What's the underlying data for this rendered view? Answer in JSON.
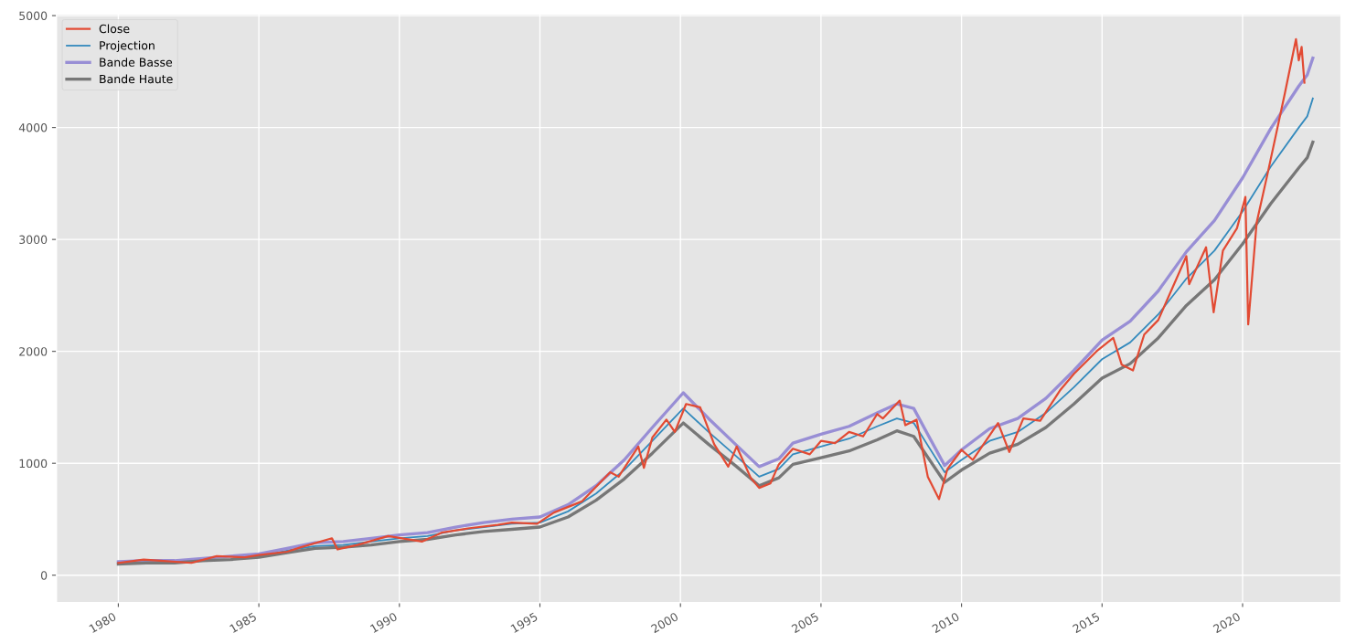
{
  "chart_data": {
    "type": "line",
    "series": [
      {
        "name": "Close",
        "color": "#e24a33",
        "x": [
          1980,
          1980.9,
          1981.5,
          1982.6,
          1983.5,
          1984.5,
          1985,
          1986,
          1986.5,
          1987.6,
          1987.8,
          1988.5,
          1989.6,
          1990.8,
          1991.5,
          1992.5,
          1993.5,
          1994,
          1994.9,
          1995.5,
          1996.5,
          1997.5,
          1997.8,
          1998.5,
          1998.7,
          1999,
          1999.5,
          1999.8,
          2000.2,
          2000.7,
          2001.2,
          2001.7,
          2002,
          2002.5,
          2002.8,
          2003.2,
          2003.5,
          2004,
          2004.6,
          2005,
          2005.5,
          2006,
          2006.5,
          2007,
          2007.2,
          2007.8,
          2008,
          2008.4,
          2008.8,
          2009.2,
          2009.5,
          2010,
          2010.4,
          2011.3,
          2011.7,
          2012.2,
          2012.8,
          2013.5,
          2014,
          2014.8,
          2015.4,
          2015.7,
          2016.1,
          2016.5,
          2017,
          2018,
          2018.1,
          2018.7,
          2018.97,
          2019.3,
          2019.8,
          2020.1,
          2020.2,
          2020.5,
          2020.9,
          2021.5,
          2021.9,
          2022.0,
          2022.1,
          2022.2
        ],
        "values": [
          110,
          140,
          130,
          110,
          170,
          160,
          180,
          210,
          250,
          330,
          230,
          270,
          350,
          300,
          380,
          420,
          450,
          470,
          460,
          560,
          660,
          920,
          880,
          1150,
          960,
          1230,
          1390,
          1280,
          1530,
          1500,
          1170,
          970,
          1150,
          870,
          780,
          820,
          990,
          1130,
          1080,
          1200,
          1180,
          1280,
          1240,
          1440,
          1400,
          1560,
          1340,
          1390,
          880,
          680,
          950,
          1120,
          1030,
          1360,
          1100,
          1400,
          1380,
          1650,
          1800,
          2000,
          2120,
          1880,
          1830,
          2150,
          2280,
          2850,
          2600,
          2930,
          2350,
          2900,
          3100,
          3380,
          2240,
          3150,
          3600,
          4300,
          4790,
          4600,
          4720,
          4400
        ]
      },
      {
        "name": "Projection",
        "color": "#348abd",
        "x": [
          1985,
          1986,
          1987,
          1988,
          1989,
          1990,
          1991,
          1992,
          1993,
          1994,
          1995,
          1996,
          1997,
          1998,
          1999,
          2000.1,
          2001,
          2002,
          2002.8,
          2003.5,
          2004,
          2005,
          2006,
          2007,
          2007.7,
          2008.3,
          2009.4,
          2010,
          2011,
          2012,
          2013,
          2014,
          2015,
          2016,
          2017,
          2018,
          2019,
          2020,
          2021,
          2022,
          2022.3,
          2022.5
        ],
        "values": [
          170,
          220,
          260,
          270,
          300,
          330,
          350,
          400,
          430,
          460,
          470,
          570,
          730,
          940,
          1200,
          1490,
          1280,
          1060,
          880,
          950,
          1080,
          1150,
          1220,
          1330,
          1400,
          1360,
          920,
          1030,
          1200,
          1280,
          1450,
          1680,
          1930,
          2080,
          2330,
          2650,
          2900,
          3250,
          3650,
          4000,
          4100,
          4260
        ]
      },
      {
        "name": "Bande Basse",
        "color": "#988ed5",
        "x": [
          1980,
          1981,
          1982,
          1983,
          1984,
          1985,
          1986,
          1987,
          1988,
          1989,
          1990,
          1991,
          1992,
          1993,
          1994,
          1995,
          1996,
          1997,
          1998,
          1999,
          2000.1,
          2001,
          2002,
          2002.8,
          2003.5,
          2004,
          2005,
          2006,
          2007,
          2007.7,
          2008.3,
          2009.4,
          2010,
          2011,
          2012,
          2013,
          2014,
          2015,
          2016,
          2017,
          2018,
          2019,
          2020,
          2021,
          2022,
          2022.3,
          2022.5
        ],
        "values": [
          120,
          130,
          130,
          150,
          170,
          190,
          240,
          290,
          300,
          330,
          360,
          380,
          430,
          470,
          500,
          520,
          630,
          800,
          1030,
          1320,
          1630,
          1400,
          1160,
          970,
          1040,
          1180,
          1260,
          1330,
          1450,
          1530,
          1490,
          980,
          1120,
          1310,
          1400,
          1580,
          1830,
          2100,
          2270,
          2540,
          2890,
          3170,
          3550,
          3990,
          4370,
          4470,
          4620
        ]
      },
      {
        "name": "Bande Haute",
        "color": "#777777",
        "x": [
          1980,
          1981,
          1982,
          1983,
          1984,
          1985,
          1986,
          1987,
          1988,
          1989,
          1990,
          1991,
          1992,
          1993,
          1994,
          1995,
          1996,
          1997,
          1998,
          1999,
          2000.1,
          2001,
          2002,
          2002.8,
          2003.5,
          2004,
          2005,
          2006,
          2007,
          2007.7,
          2008.3,
          2009.4,
          2010,
          2011,
          2012,
          2013,
          2014,
          2015,
          2016,
          2017,
          2018,
          2019,
          2020,
          2021,
          2022,
          2022.3,
          2022.5
        ],
        "values": [
          100,
          110,
          110,
          130,
          140,
          160,
          200,
          240,
          250,
          270,
          300,
          320,
          360,
          390,
          410,
          430,
          520,
          670,
          860,
          1090,
          1360,
          1170,
          970,
          800,
          870,
          990,
          1050,
          1110,
          1210,
          1290,
          1240,
          830,
          940,
          1090,
          1170,
          1320,
          1530,
          1760,
          1890,
          2120,
          2410,
          2640,
          2960,
          3320,
          3640,
          3730,
          3870
        ]
      }
    ],
    "xlim": [
      1977.8,
      2023.5
    ],
    "xticks": [
      1980,
      1985,
      1990,
      1995,
      2000,
      2005,
      2010,
      2015,
      2020
    ],
    "ylim": [
      -245,
      5015
    ],
    "yticks": [
      0,
      1000,
      2000,
      3000,
      4000,
      5000
    ],
    "grid": true,
    "legend": "top left"
  }
}
